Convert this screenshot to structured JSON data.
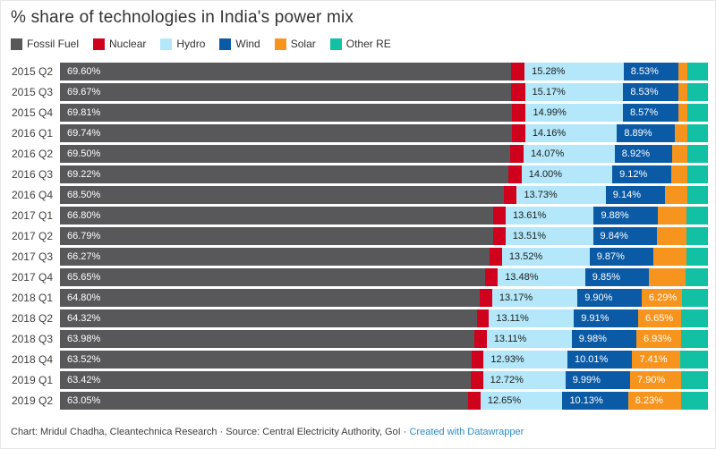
{
  "title": "% share of technologies in India's power mix",
  "legend": [
    {
      "label": "Fossil Fuel",
      "color": "#58585b"
    },
    {
      "label": "Nuclear",
      "color": "#d0011c"
    },
    {
      "label": "Hydro",
      "color": "#b3e7f9"
    },
    {
      "label": "Wind",
      "color": "#0b5aa5"
    },
    {
      "label": "Solar",
      "color": "#f7941e"
    },
    {
      "label": "Other RE",
      "color": "#12c0a4"
    }
  ],
  "footer": {
    "credit_text": "Chart: Mridul Chadha, Cleantechnica Research · Source: Central Electricity Authority, GoI · ",
    "link_label": "Created with Datawrapper"
  },
  "chart_data": {
    "type": "bar",
    "stacked": true,
    "orientation": "horizontal",
    "unit": "%",
    "xlim": [
      0,
      100
    ],
    "grid": false,
    "legend_position": "top",
    "title": "% share of technologies in India's power mix",
    "categories": [
      "2015 Q2",
      "2015 Q3",
      "2015 Q4",
      "2016 Q1",
      "2016 Q2",
      "2016 Q3",
      "2016 Q4",
      "2017 Q1",
      "2017 Q2",
      "2017 Q3",
      "2017 Q4",
      "2018 Q1",
      "2018 Q2",
      "2018 Q3",
      "2018 Q4",
      "2019 Q1",
      "2019 Q2"
    ],
    "unlabeled_segments_estimated_from_pixel_widths": true,
    "series": [
      {
        "name": "Fossil Fuel",
        "color": "#58585b",
        "label_color": "#ffffff",
        "values": [
          69.6,
          69.67,
          69.81,
          69.74,
          69.5,
          69.22,
          68.5,
          66.8,
          66.79,
          66.27,
          65.65,
          64.8,
          64.32,
          63.98,
          63.52,
          63.42,
          63.05
        ],
        "labels": [
          "69.60%",
          "69.67%",
          "69.81%",
          "69.74%",
          "69.50%",
          "69.22%",
          "68.50%",
          "66.80%",
          "66.79%",
          "66.27%",
          "65.65%",
          "64.80%",
          "64.32%",
          "63.98%",
          "63.52%",
          "63.42%",
          "63.05%"
        ]
      },
      {
        "name": "Nuclear",
        "color": "#d0011c",
        "label_color": "#ffffff",
        "values": [
          2.1,
          2.09,
          2.08,
          2.06,
          2.04,
          2.02,
          2.0,
          1.98,
          1.96,
          1.94,
          1.92,
          1.9,
          1.89,
          1.88,
          1.87,
          1.86,
          1.85
        ],
        "labels": [
          null,
          null,
          null,
          null,
          null,
          null,
          null,
          null,
          null,
          null,
          null,
          null,
          null,
          null,
          null,
          null,
          null
        ]
      },
      {
        "name": "Hydro",
        "color": "#b3e7f9",
        "label_color": "#1d1d1d",
        "values": [
          15.28,
          15.17,
          14.99,
          14.16,
          14.07,
          14.0,
          13.73,
          13.61,
          13.51,
          13.52,
          13.48,
          13.17,
          13.11,
          13.11,
          12.93,
          12.72,
          12.65
        ],
        "labels": [
          "15.28%",
          "15.17%",
          "14.99%",
          "14.16%",
          "14.07%",
          "14.00%",
          "13.73%",
          "13.61%",
          "13.51%",
          "13.52%",
          "13.48%",
          "13.17%",
          "13.11%",
          "13.11%",
          "12.93%",
          "12.72%",
          "12.65%"
        ]
      },
      {
        "name": "Wind",
        "color": "#0b5aa5",
        "label_color": "#ffffff",
        "values": [
          8.53,
          8.53,
          8.57,
          8.89,
          8.92,
          9.12,
          9.14,
          9.88,
          9.84,
          9.87,
          9.85,
          9.9,
          9.91,
          9.98,
          10.01,
          9.99,
          10.13
        ],
        "labels": [
          "8.53%",
          "8.53%",
          "8.57%",
          "8.89%",
          "8.92%",
          "9.12%",
          "9.14%",
          "9.88%",
          "9.84%",
          "9.87%",
          "9.85%",
          "9.90%",
          "9.91%",
          "9.98%",
          "10.01%",
          "9.99%",
          "10.13%"
        ]
      },
      {
        "name": "Solar",
        "color": "#f7941e",
        "label_color": "#ffffff",
        "values": [
          1.25,
          1.32,
          1.42,
          2.0,
          2.3,
          2.5,
          3.4,
          4.4,
          4.6,
          5.05,
          5.7,
          6.29,
          6.65,
          6.93,
          7.41,
          7.9,
          8.23
        ],
        "labels": [
          null,
          null,
          null,
          null,
          null,
          null,
          null,
          null,
          null,
          null,
          null,
          "6.29%",
          "6.65%",
          "6.93%",
          "7.41%",
          "7.90%",
          "8.23%"
        ]
      },
      {
        "name": "Other RE",
        "color": "#12c0a4",
        "label_color": "#ffffff",
        "values": [
          3.24,
          3.22,
          3.13,
          3.15,
          3.17,
          3.14,
          3.23,
          3.33,
          3.3,
          3.35,
          3.4,
          3.94,
          4.12,
          4.12,
          4.26,
          4.11,
          4.09
        ],
        "labels": [
          null,
          null,
          null,
          null,
          null,
          null,
          null,
          null,
          null,
          null,
          null,
          null,
          null,
          null,
          null,
          null,
          null
        ]
      }
    ]
  }
}
